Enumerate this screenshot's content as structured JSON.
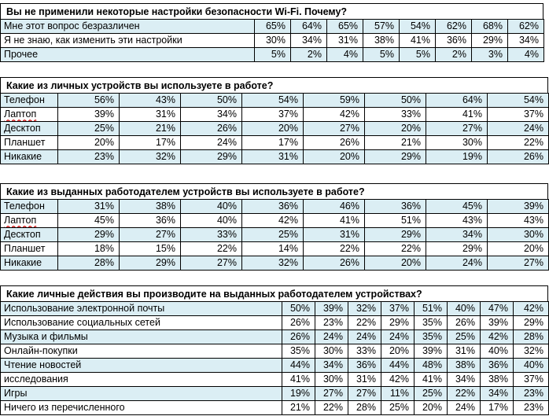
{
  "sections": [
    {
      "title": "Вы не применили некоторые настройки безопасности Wi-Fi. Почему?",
      "rows": [
        {
          "label": "Мне этот вопрос безразличен",
          "values": [
            "65%",
            "64%",
            "65%",
            "57%",
            "54%",
            "62%",
            "68%",
            "62%"
          ]
        },
        {
          "label": "Я не знаю, как изменить эти настройки",
          "values": [
            "30%",
            "34%",
            "31%",
            "38%",
            "41%",
            "36%",
            "29%",
            "34%"
          ]
        },
        {
          "label": "Прочее",
          "values": [
            "5%",
            "2%",
            "4%",
            "5%",
            "5%",
            "2%",
            "3%",
            "4%"
          ]
        }
      ]
    },
    {
      "title": "Какие из личных устройств вы используете в работе?",
      "rows": [
        {
          "label": "Телефон",
          "values": [
            "56%",
            "43%",
            "50%",
            "54%",
            "59%",
            "50%",
            "64%",
            "54%"
          ]
        },
        {
          "label": "Лаптоп",
          "values": [
            "39%",
            "31%",
            "34%",
            "37%",
            "42%",
            "33%",
            "41%",
            "37%"
          ]
        },
        {
          "label": "Десктоп",
          "values": [
            "25%",
            "21%",
            "26%",
            "20%",
            "27%",
            "20%",
            "27%",
            "24%"
          ]
        },
        {
          "label": "Планшет",
          "values": [
            "20%",
            "17%",
            "24%",
            "17%",
            "26%",
            "21%",
            "30%",
            "22%"
          ]
        },
        {
          "label": "Никакие",
          "values": [
            "23%",
            "32%",
            "29%",
            "31%",
            "20%",
            "29%",
            "19%",
            "26%"
          ]
        }
      ]
    },
    {
      "title": "Какие из выданных работодателем устройств вы используете в работе?",
      "rows": [
        {
          "label": "Телефон",
          "values": [
            "31%",
            "38%",
            "40%",
            "36%",
            "46%",
            "36%",
            "45%",
            "39%"
          ]
        },
        {
          "label": "Лаптоп",
          "values": [
            "45%",
            "36%",
            "40%",
            "42%",
            "41%",
            "51%",
            "43%",
            "43%"
          ]
        },
        {
          "label": "Десктоп",
          "values": [
            "29%",
            "27%",
            "33%",
            "25%",
            "31%",
            "29%",
            "34%",
            "30%"
          ]
        },
        {
          "label": "Планшет",
          "values": [
            "18%",
            "15%",
            "22%",
            "14%",
            "22%",
            "22%",
            "29%",
            "20%"
          ]
        },
        {
          "label": "Никакие",
          "values": [
            "28%",
            "29%",
            "27%",
            "32%",
            "26%",
            "20%",
            "24%",
            "27%"
          ]
        }
      ]
    },
    {
      "title": "Какие личные действия вы производите на выданных работодателем устройствах?",
      "rows": [
        {
          "label": "Использование электронной почты",
          "values": [
            "50%",
            "39%",
            "32%",
            "37%",
            "51%",
            "40%",
            "47%",
            "42%"
          ]
        },
        {
          "label": "Использование социальных сетей",
          "values": [
            "26%",
            "23%",
            "22%",
            "29%",
            "35%",
            "26%",
            "39%",
            "29%"
          ]
        },
        {
          "label": "Музыка и фильмы",
          "values": [
            "26%",
            "24%",
            "24%",
            "24%",
            "35%",
            "25%",
            "42%",
            "28%"
          ]
        },
        {
          "label": "Онлайн-покупки",
          "values": [
            "35%",
            "30%",
            "33%",
            "20%",
            "39%",
            "31%",
            "40%",
            "32%"
          ]
        },
        {
          "label": "Чтение новостей",
          "values": [
            "44%",
            "34%",
            "36%",
            "44%",
            "48%",
            "38%",
            "36%",
            "40%"
          ]
        },
        {
          "label": "исследования",
          "values": [
            "41%",
            "30%",
            "31%",
            "42%",
            "41%",
            "34%",
            "38%",
            "37%"
          ]
        },
        {
          "label": "Игры",
          "values": [
            "19%",
            "27%",
            "27%",
            "11%",
            "25%",
            "22%",
            "34%",
            "23%"
          ]
        },
        {
          "label": "Ничего из перечисленного",
          "values": [
            "21%",
            "22%",
            "28%",
            "25%",
            "20%",
            "24%",
            "17%",
            "23%"
          ]
        }
      ]
    }
  ]
}
